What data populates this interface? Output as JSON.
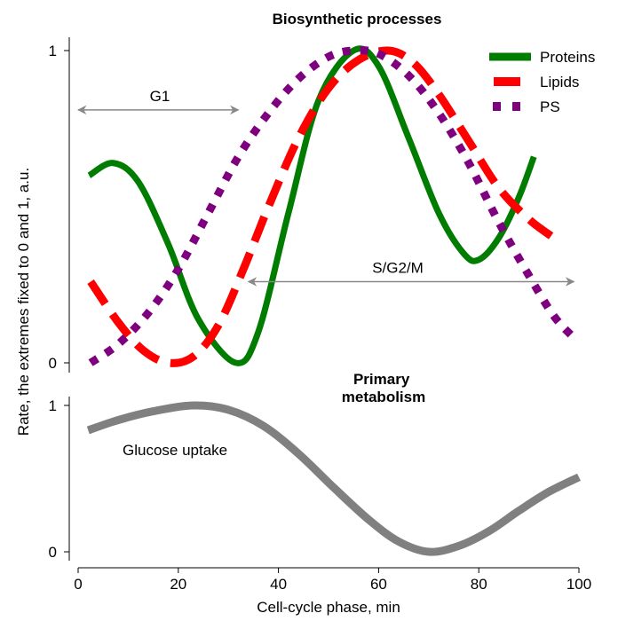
{
  "chart_data": [
    {
      "type": "line",
      "title": "Biosynthetic processes",
      "xlim": [
        0,
        100
      ],
      "ylim": [
        0,
        1
      ],
      "yticks": [
        "0",
        "1"
      ],
      "legend": "top-right",
      "grid": false,
      "series": [
        {
          "name": "Proteins",
          "color": "#007c00",
          "style": "solid",
          "x": [
            2.2,
            7,
            12,
            18,
            24,
            31.5,
            36,
            42,
            48,
            55,
            60,
            66,
            72,
            77,
            80,
            84,
            88,
            91
          ],
          "y": [
            0.6,
            0.64,
            0.58,
            0.38,
            0.14,
            0,
            0.1,
            0.48,
            0.84,
            1,
            0.95,
            0.72,
            0.48,
            0.35,
            0.33,
            0.4,
            0.53,
            0.66
          ]
        },
        {
          "name": "Lipids",
          "color": "#ff0000",
          "style": "dashed",
          "x": [
            2.5,
            8,
            13,
            18,
            23,
            28,
            33,
            38,
            44,
            50,
            56,
            62,
            67,
            72,
            78,
            84,
            90,
            95
          ],
          "y": [
            0.26,
            0.13,
            0.04,
            0,
            0.02,
            0.12,
            0.3,
            0.5,
            0.72,
            0.88,
            0.97,
            1,
            0.96,
            0.86,
            0.71,
            0.56,
            0.46,
            0.4
          ]
        },
        {
          "name": "PS",
          "color": "#7f007f",
          "style": "dotted",
          "x": [
            2.5,
            8,
            14,
            20,
            26,
            32,
            38,
            44,
            50,
            55,
            60,
            66,
            72,
            78,
            84,
            90,
            95,
            99
          ],
          "y": [
            0,
            0.06,
            0.16,
            0.3,
            0.48,
            0.66,
            0.8,
            0.91,
            0.98,
            1,
            0.99,
            0.92,
            0.8,
            0.64,
            0.45,
            0.28,
            0.15,
            0.08
          ]
        }
      ],
      "annotations": [
        {
          "text": "G1",
          "from": 0,
          "to": 32,
          "y": 0.81
        },
        {
          "text": "S/G2/M",
          "from": 34,
          "to": 99,
          "y": 0.26
        }
      ]
    },
    {
      "type": "line",
      "title": "Primary metabolism",
      "xlim": [
        0,
        100
      ],
      "ylim": [
        0,
        1
      ],
      "xticks": [
        "0",
        "20",
        "40",
        "60",
        "80",
        "100"
      ],
      "yticks": [
        "0",
        "1"
      ],
      "xlabel": "Cell-cycle phase, min",
      "ylabel": "Rate, the extremes fixed to 0 and 1, a.u.",
      "grid": false,
      "series": [
        {
          "label": "Glucose uptake",
          "color": "#808080",
          "style": "solid",
          "x": [
            2,
            8,
            15,
            23,
            30,
            37,
            44,
            51,
            58,
            64,
            70,
            76,
            82,
            88,
            94,
            100
          ],
          "y": [
            0.83,
            0.9,
            0.96,
            1,
            0.97,
            0.86,
            0.67,
            0.44,
            0.22,
            0.07,
            0,
            0.04,
            0.14,
            0.28,
            0.41,
            0.51
          ]
        }
      ]
    }
  ]
}
